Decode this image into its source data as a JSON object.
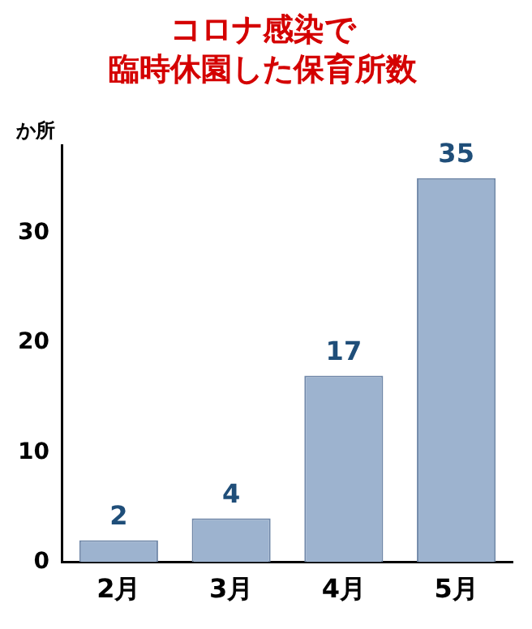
{
  "chart_data": {
    "type": "bar",
    "title": "コロナ感染で",
    "subtitle": "臨時休園した保育所数",
    "ylabel": "か所",
    "categories": [
      "2月",
      "3月",
      "4月",
      "5月"
    ],
    "values": [
      2,
      4,
      17,
      35
    ],
    "color": "#9db3cf",
    "ylim": [
      0,
      38
    ],
    "yticks": [
      0,
      10,
      20,
      30
    ],
    "grid": false,
    "data_labels": true,
    "legend": false
  }
}
